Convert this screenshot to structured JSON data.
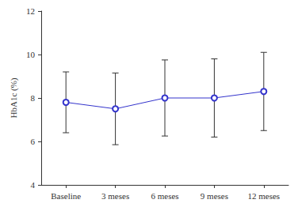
{
  "chart_data": {
    "type": "line",
    "y_label": "HbA1c (%)",
    "categories": [
      "Baseline",
      "3 meses",
      "6 meses",
      "9 meses",
      "12 meses"
    ],
    "values": [
      7.8,
      7.5,
      8.0,
      8.0,
      8.3
    ],
    "error": [
      1.4,
      1.65,
      1.75,
      1.8,
      1.8
    ],
    "color": "#3333cc",
    "marker": "circle",
    "ylim": [
      4,
      12
    ],
    "yticks": [
      4,
      6,
      8,
      10,
      12
    ],
    "grid": false
  }
}
